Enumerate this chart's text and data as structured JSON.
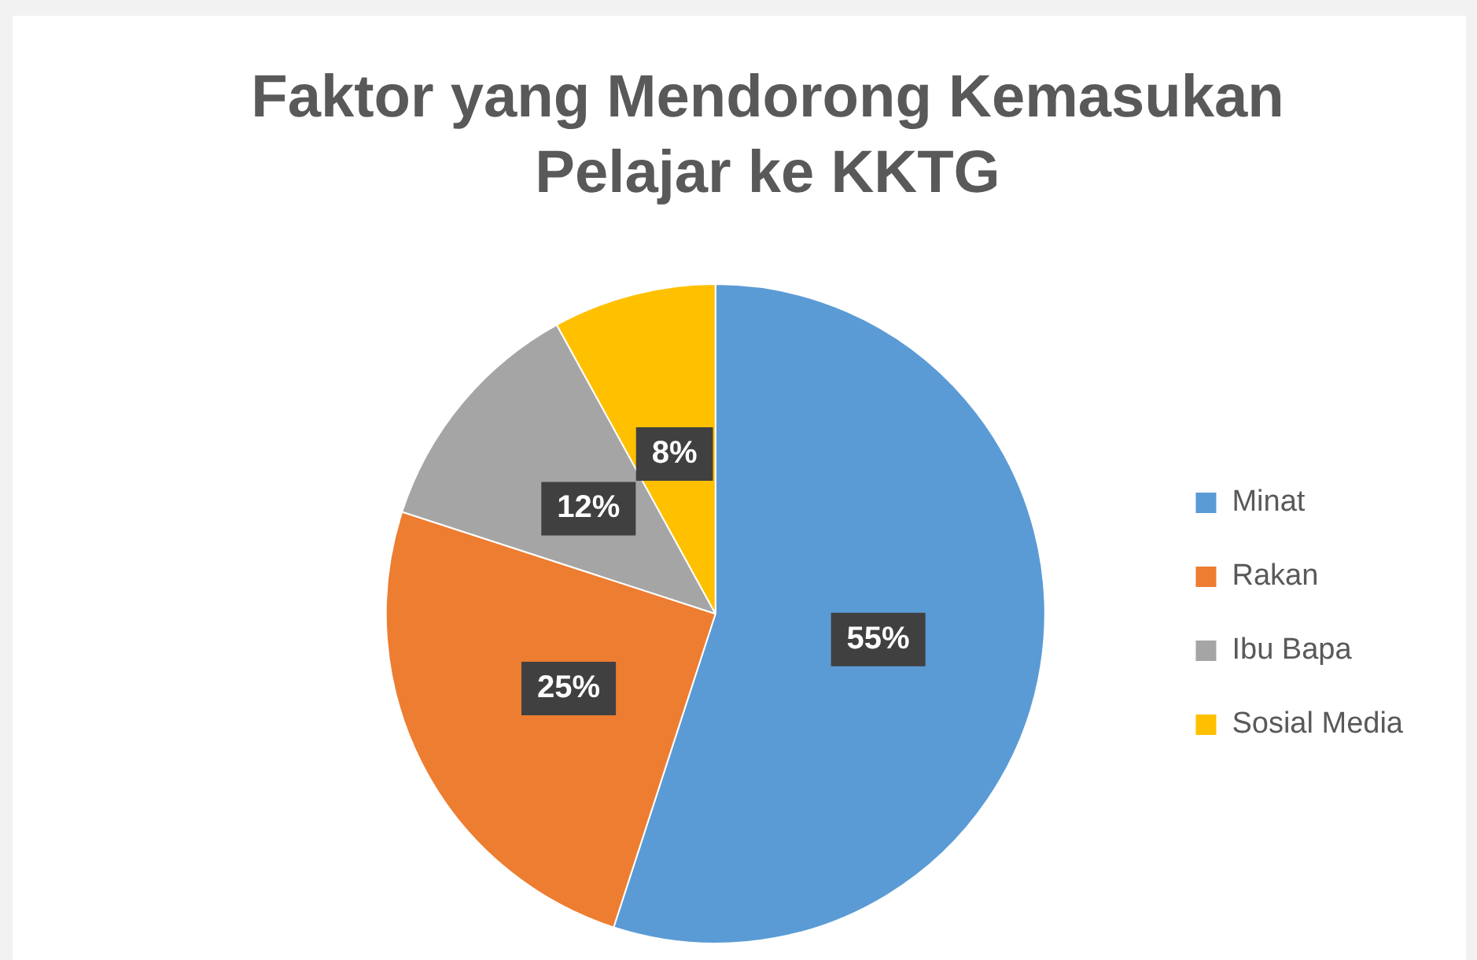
{
  "chart_data": {
    "type": "pie",
    "title": "Faktor yang Mendorong Kemasukan Pelajar ke KKTG",
    "categories": [
      "Minat",
      "Rakan",
      "Ibu Bapa",
      "Sosial Media"
    ],
    "values": [
      55,
      25,
      12,
      8
    ],
    "colors": [
      "#5b9bd5",
      "#ed7d31",
      "#a5a5a5",
      "#ffc000"
    ],
    "value_labels": [
      "55%",
      "25%",
      "12%",
      "8%"
    ],
    "legend": "right"
  }
}
